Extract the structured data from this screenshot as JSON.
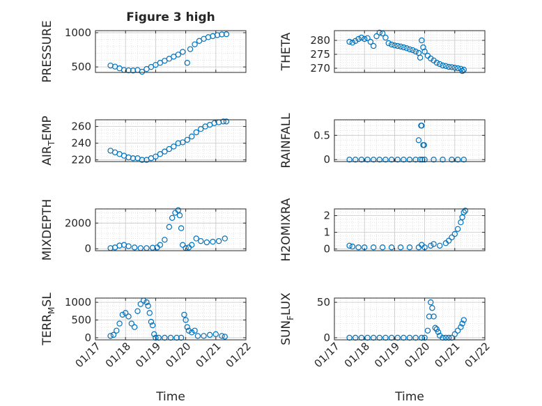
{
  "figure": {
    "title": "Figure 3 high",
    "colors": {
      "marker": "#0072bd",
      "axis": "#262626",
      "grid": "#c8c8c8",
      "background": "#ffffff"
    },
    "x_axis_label": "Time",
    "x_tick_labels": [
      "01/17",
      "01/18",
      "01/19",
      "01/20",
      "01/21",
      "01/22"
    ]
  },
  "chart_data": [
    {
      "type": "scatter",
      "panel": "top-left",
      "ylabel": "PRESSURE",
      "xlim": [
        17,
        22
      ],
      "ylim": [
        420,
        1030
      ],
      "yticks": [
        500,
        1000
      ],
      "x": [
        17.5,
        17.65,
        17.8,
        17.95,
        18.1,
        18.25,
        18.4,
        18.55,
        18.7,
        18.85,
        19.0,
        19.15,
        19.3,
        19.45,
        19.6,
        19.75,
        19.9,
        20.05,
        20.15,
        20.3,
        20.45,
        20.6,
        20.75,
        20.9,
        21.05,
        21.2,
        21.35
      ],
      "values": [
        520,
        505,
        480,
        455,
        450,
        448,
        455,
        430,
        470,
        500,
        530,
        560,
        590,
        620,
        650,
        680,
        720,
        560,
        760,
        830,
        880,
        910,
        935,
        950,
        965,
        975,
        978
      ]
    },
    {
      "type": "scatter",
      "panel": "top-right",
      "ylabel": "THETA",
      "xlim": [
        17,
        22
      ],
      "ylim": [
        268.5,
        283.5
      ],
      "yticks": [
        270,
        275,
        280
      ],
      "x": [
        17.5,
        17.6,
        17.7,
        17.8,
        17.9,
        18.0,
        18.1,
        18.2,
        18.3,
        18.4,
        18.5,
        18.6,
        18.7,
        18.8,
        18.9,
        19.0,
        19.1,
        19.2,
        19.3,
        19.4,
        19.5,
        19.6,
        19.7,
        19.8,
        19.85,
        19.9,
        19.95,
        20.0,
        20.1,
        20.2,
        20.3,
        20.4,
        20.5,
        20.6,
        20.7,
        20.8,
        20.9,
        21.0,
        21.1,
        21.2,
        21.25,
        21.3
      ],
      "values": [
        279.5,
        279.2,
        279.8,
        280.5,
        281.0,
        280.5,
        280.8,
        279.5,
        278.0,
        281.5,
        282.8,
        282.5,
        281.0,
        279.0,
        278.5,
        278.2,
        278.0,
        277.8,
        277.5,
        277.2,
        276.8,
        276.5,
        276.0,
        275.5,
        273.8,
        280.0,
        277.5,
        276.0,
        274.5,
        273.5,
        272.8,
        272.0,
        271.5,
        271.0,
        270.8,
        270.5,
        270.4,
        270.2,
        270.0,
        269.8,
        269.0,
        269.5
      ]
    },
    {
      "type": "scatter",
      "panel": "second-left",
      "ylabel": "AIR_TEMP",
      "xlim": [
        17,
        22
      ],
      "ylim": [
        218,
        268
      ],
      "yticks": [
        220,
        240,
        260
      ],
      "x": [
        17.5,
        17.65,
        17.8,
        17.95,
        18.1,
        18.25,
        18.4,
        18.55,
        18.7,
        18.85,
        19.0,
        19.15,
        19.3,
        19.45,
        19.6,
        19.75,
        19.9,
        20.05,
        20.2,
        20.35,
        20.5,
        20.65,
        20.8,
        20.95,
        21.1,
        21.25,
        21.35
      ],
      "values": [
        231,
        229,
        227,
        225,
        223,
        222,
        222,
        220,
        220,
        222,
        224,
        227,
        230,
        233,
        236,
        240,
        241,
        244,
        248,
        253,
        257,
        260,
        262,
        264,
        265,
        266,
        266
      ]
    },
    {
      "type": "scatter",
      "panel": "second-right",
      "ylabel": "RAINFALL",
      "xlim": [
        17,
        22
      ],
      "ylim": [
        -0.04,
        0.82
      ],
      "yticks": [
        0,
        0.5
      ],
      "x": [
        17.5,
        17.7,
        17.9,
        18.1,
        18.3,
        18.5,
        18.7,
        18.9,
        19.1,
        19.3,
        19.5,
        19.7,
        19.8,
        19.85,
        19.88,
        19.9,
        19.92,
        19.95,
        19.98,
        20.0,
        20.3,
        20.6,
        20.9,
        21.1,
        21.3
      ],
      "values": [
        0,
        0,
        0,
        0,
        0,
        0,
        0,
        0,
        0,
        0,
        0,
        0,
        0.4,
        0,
        0.7,
        0.7,
        0,
        0.3,
        0.3,
        0,
        0,
        0,
        0,
        0,
        0
      ]
    },
    {
      "type": "scatter",
      "panel": "third-left",
      "ylabel": "MIXDEPTH",
      "xlim": [
        17,
        22
      ],
      "ylim": [
        -150,
        3100
      ],
      "yticks": [
        0,
        2000
      ],
      "x": [
        17.5,
        17.65,
        17.8,
        17.95,
        18.1,
        18.3,
        18.5,
        18.7,
        18.9,
        19.05,
        19.15,
        19.3,
        19.45,
        19.55,
        19.65,
        19.75,
        19.8,
        19.85,
        19.9,
        20.0,
        20.1,
        20.2,
        20.35,
        20.5,
        20.7,
        20.9,
        21.1,
        21.3
      ],
      "values": [
        50,
        100,
        250,
        300,
        200,
        100,
        50,
        50,
        80,
        100,
        300,
        700,
        1700,
        2400,
        2800,
        3000,
        2600,
        1600,
        300,
        50,
        100,
        300,
        800,
        600,
        500,
        550,
        600,
        800
      ]
    },
    {
      "type": "scatter",
      "panel": "third-right",
      "ylabel": "H2OMIXRA",
      "xlim": [
        17,
        22
      ],
      "ylim": [
        -0.1,
        2.4
      ],
      "yticks": [
        0,
        1,
        2
      ],
      "x": [
        17.5,
        17.6,
        17.8,
        18.0,
        18.3,
        18.6,
        18.9,
        19.2,
        19.5,
        19.8,
        19.9,
        20.0,
        20.2,
        20.3,
        20.5,
        20.7,
        20.8,
        20.9,
        21.0,
        21.1,
        21.2,
        21.25,
        21.3,
        21.35
      ],
      "values": [
        0.2,
        0.15,
        0.1,
        0.1,
        0.1,
        0.1,
        0.1,
        0.1,
        0.1,
        0.1,
        0.25,
        0.1,
        0.2,
        0.3,
        0.2,
        0.35,
        0.5,
        0.7,
        0.9,
        1.2,
        1.6,
        1.9,
        2.2,
        2.3
      ]
    },
    {
      "type": "scatter",
      "panel": "bottom-left",
      "ylabel": "TERR_MSL",
      "xlim": [
        17,
        22
      ],
      "ylim": [
        -60,
        1120
      ],
      "yticks": [
        0,
        500,
        1000
      ],
      "x": [
        17.5,
        17.6,
        17.7,
        17.8,
        17.9,
        18.0,
        18.1,
        18.2,
        18.3,
        18.4,
        18.5,
        18.6,
        18.7,
        18.75,
        18.8,
        18.85,
        18.9,
        18.95,
        19.0,
        19.1,
        19.3,
        19.5,
        19.7,
        19.85,
        19.95,
        20.0,
        20.05,
        20.1,
        20.2,
        20.3,
        20.4,
        20.6,
        20.8,
        21.0,
        21.2,
        21.3
      ],
      "values": [
        50,
        80,
        200,
        400,
        650,
        700,
        600,
        400,
        300,
        750,
        950,
        1050,
        1000,
        900,
        700,
        450,
        350,
        100,
        0,
        0,
        0,
        0,
        0,
        0,
        650,
        500,
        300,
        200,
        150,
        200,
        50,
        50,
        80,
        100,
        50,
        30
      ]
    },
    {
      "type": "scatter",
      "panel": "bottom-right",
      "ylabel": "SUN_FLUX",
      "xlim": [
        17,
        22
      ],
      "ylim": [
        -3,
        56
      ],
      "yticks": [
        0,
        50
      ],
      "x": [
        17.5,
        17.7,
        17.9,
        18.1,
        18.3,
        18.5,
        18.7,
        18.9,
        19.1,
        19.3,
        19.5,
        19.7,
        19.9,
        20.0,
        20.1,
        20.15,
        20.2,
        20.25,
        20.3,
        20.35,
        20.4,
        20.45,
        20.5,
        20.6,
        20.7,
        20.8,
        20.9,
        21.0,
        21.1,
        21.2,
        21.25,
        21.3
      ],
      "values": [
        0,
        0,
        0,
        0,
        0,
        0,
        0,
        0,
        0,
        0,
        0,
        0,
        0,
        0,
        10,
        30,
        50,
        42,
        30,
        14,
        12,
        8,
        3,
        0,
        0,
        0,
        0,
        5,
        10,
        15,
        20,
        25
      ]
    }
  ]
}
